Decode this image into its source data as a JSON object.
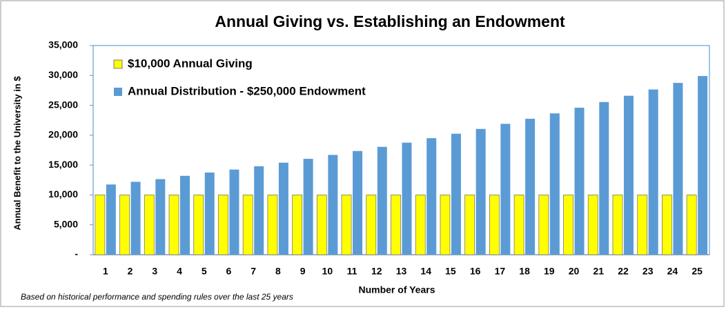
{
  "chart_data": {
    "type": "bar",
    "title": "Annual Giving vs. Establishing an Endowment",
    "x_label": "Number of Years",
    "y_label": "Annual Benefit to the University in $",
    "footnote": "Based on historical performance and spending rules over the last 25 years",
    "categories": [
      "1",
      "2",
      "3",
      "4",
      "5",
      "6",
      "7",
      "8",
      "9",
      "10",
      "11",
      "12",
      "13",
      "14",
      "15",
      "16",
      "17",
      "18",
      "19",
      "20",
      "21",
      "22",
      "23",
      "24",
      "25"
    ],
    "series": [
      {
        "name": "$10,000 Annual Giving",
        "color": "#ffff00",
        "values": [
          10000,
          10000,
          10000,
          10000,
          10000,
          10000,
          10000,
          10000,
          10000,
          10000,
          10000,
          10000,
          10000,
          10000,
          10000,
          10000,
          10000,
          10000,
          10000,
          10000,
          10000,
          10000,
          10000,
          10000,
          10000
        ]
      },
      {
        "name": "Annual Distribution - $250,000 Endowment",
        "color": "#5b9bd5",
        "values": [
          11750,
          12200,
          12650,
          13200,
          13750,
          14250,
          14800,
          15400,
          16050,
          16700,
          17350,
          18050,
          18750,
          19500,
          20250,
          21050,
          21900,
          22750,
          23650,
          24600,
          25550,
          26600,
          27650,
          28750,
          29900
        ]
      }
    ],
    "ylim": [
      0,
      35000
    ],
    "yticks": [
      {
        "value": 0,
        "label": "-"
      },
      {
        "value": 5000,
        "label": "5,000"
      },
      {
        "value": 10000,
        "label": "10,000"
      },
      {
        "value": 15000,
        "label": "15,000"
      },
      {
        "value": 20000,
        "label": "20,000"
      },
      {
        "value": 25000,
        "label": "25,000"
      },
      {
        "value": 30000,
        "label": "30,000"
      },
      {
        "value": 35000,
        "label": "35,000"
      }
    ],
    "grid": false,
    "legend": "top-left"
  }
}
